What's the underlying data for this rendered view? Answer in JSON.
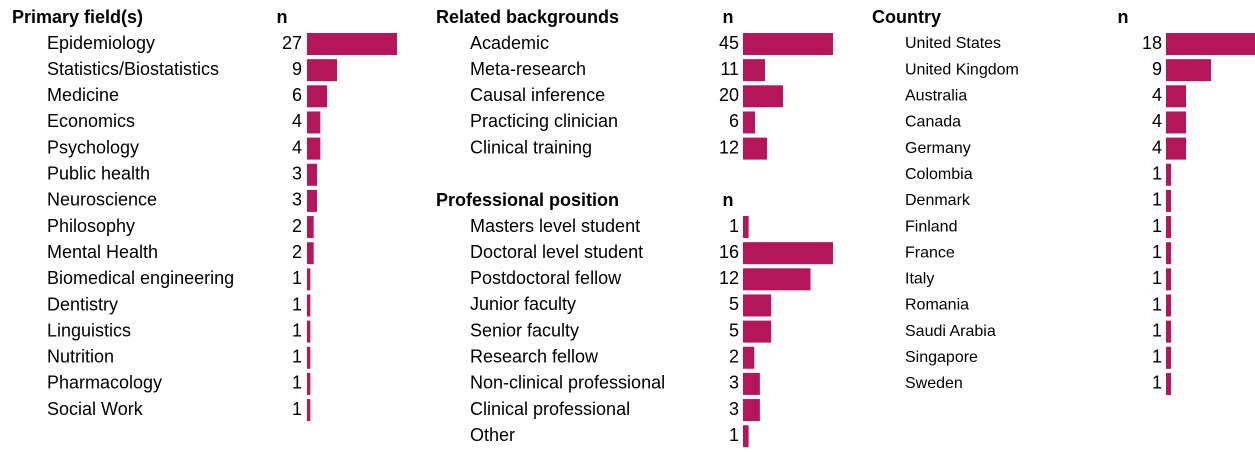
{
  "chart_data": [
    {
      "type": "bar",
      "title": "Primary field(s)",
      "value_header": "n",
      "color": "#b5165a",
      "categories": [
        "Epidemiology",
        "Statistics/Biostatistics",
        "Medicine",
        "Economics",
        "Psychology",
        "Public health",
        "Neuroscience",
        "Philosophy",
        "Mental Health",
        "Biomedical engineering",
        "Dentistry",
        "Linguistics",
        "Nutrition",
        "Pharmacology",
        "Social Work"
      ],
      "values": [
        27,
        9,
        6,
        4,
        4,
        3,
        3,
        2,
        2,
        1,
        1,
        1,
        1,
        1,
        1
      ]
    },
    {
      "type": "bar",
      "title": "Related backgrounds",
      "value_header": "n",
      "color": "#b5165a",
      "categories": [
        "Academic",
        "Meta-research",
        "Causal inference",
        "Practicing clinician",
        "Clinical training"
      ],
      "values": [
        45,
        11,
        20,
        6,
        12
      ]
    },
    {
      "type": "bar",
      "title": "Professional position",
      "value_header": "n",
      "color": "#b5165a",
      "categories": [
        "Masters level student",
        "Doctoral level student",
        "Postdoctoral fellow",
        "Junior faculty",
        "Senior faculty",
        "Research fellow",
        "Non-clinical professional",
        "Clinical professional",
        "Other"
      ],
      "values": [
        1,
        16,
        12,
        5,
        5,
        2,
        3,
        3,
        1
      ]
    },
    {
      "type": "bar",
      "title": "Country",
      "value_header": "n",
      "color": "#b5165a",
      "categories": [
        "United States",
        "United Kingdom",
        "Australia",
        "Canada",
        "Germany",
        "Colombia",
        "Denmark",
        "Finland",
        "France",
        "Italy",
        "Romania",
        "Saudi Arabia",
        "Singapore",
        "Sweden"
      ],
      "values": [
        18,
        9,
        4,
        4,
        4,
        1,
        1,
        1,
        1,
        1,
        1,
        1,
        1,
        1
      ]
    }
  ]
}
